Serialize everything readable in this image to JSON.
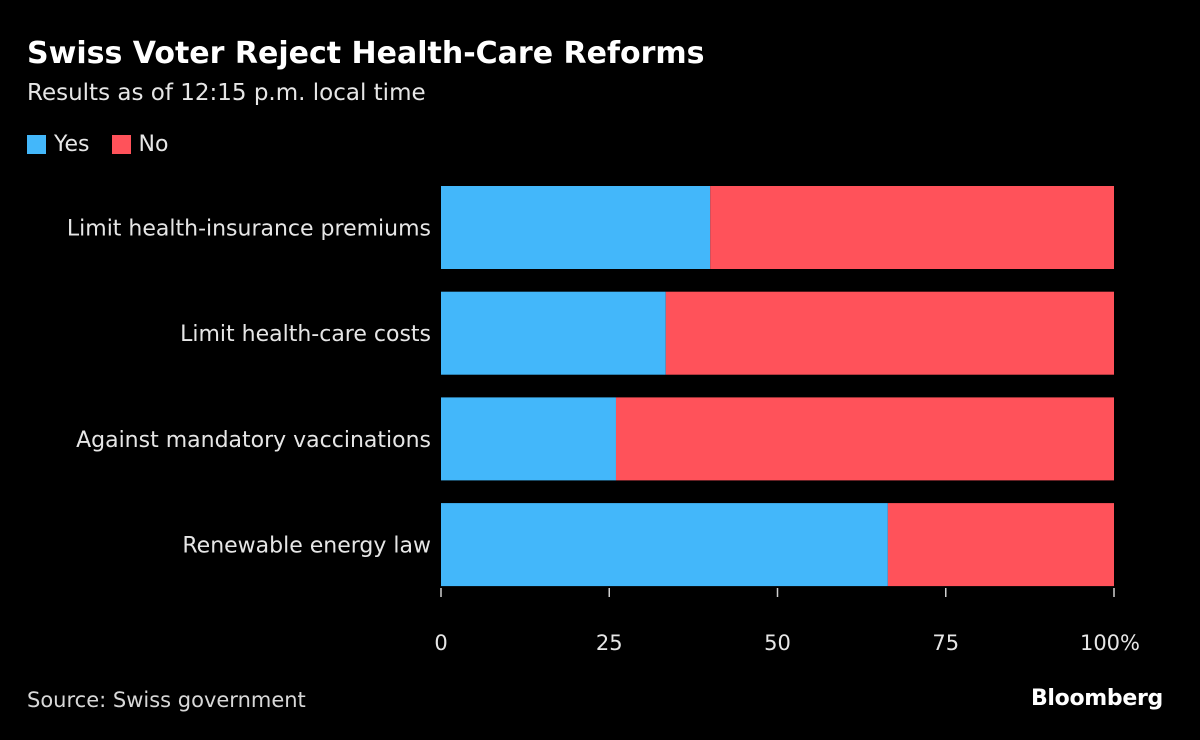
{
  "header": {
    "title": "Swiss Voter Reject Health-Care Reforms",
    "subtitle": "Results as of 12:15 p.m. local time"
  },
  "footer": {
    "source": "Source: Swiss government",
    "brand": "Bloomberg"
  },
  "colors": {
    "background": "#000000",
    "yes": "#43b7fa",
    "no": "#ff525a"
  },
  "chart_data": {
    "type": "bar",
    "orientation": "horizontal",
    "stacked": true,
    "categories": [
      "Limit health-insurance premiums",
      "Limit health-care costs",
      "Against mandatory vaccinations",
      "Renewable energy law"
    ],
    "series": [
      {
        "name": "Yes",
        "values": [
          40,
          33.4,
          26,
          66.4
        ]
      },
      {
        "name": "No",
        "values": [
          60,
          66.6,
          74,
          33.6
        ]
      }
    ],
    "xlim": [
      0,
      100
    ],
    "x_ticks": [
      "0",
      "25",
      "50",
      "75",
      "100%"
    ],
    "x_tick_values": [
      0,
      25,
      50,
      75,
      100
    ],
    "legend_position": "top-left",
    "grid": false
  }
}
